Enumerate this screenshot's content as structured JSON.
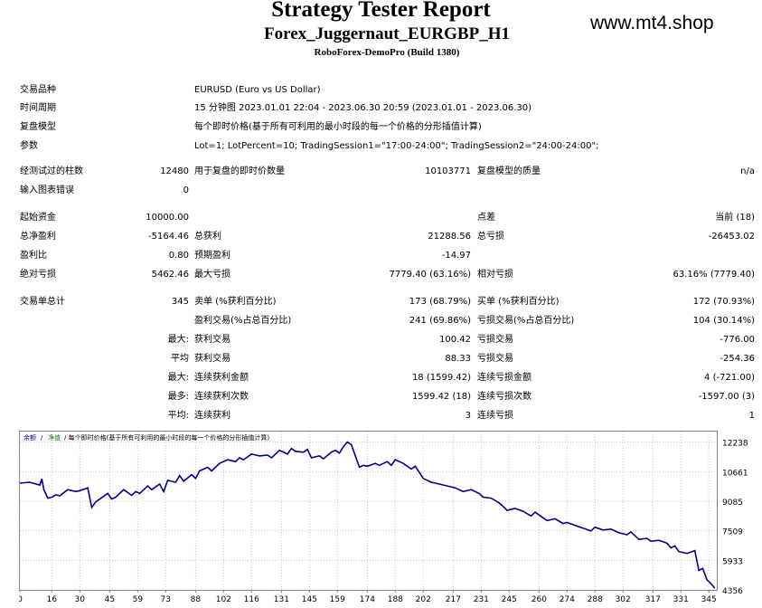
{
  "header": {
    "title": "Strategy Tester Report",
    "subtitle": "Forex_Juggernaut_EURGBP_H1",
    "build": "RoboForex-DemoPro (Build 1380)",
    "watermark": "www.mt4.shop"
  },
  "info": {
    "symbol_label": "交易品种",
    "symbol_value": "EURUSD (Euro vs US Dollar)",
    "period_label": "时间周期",
    "period_value": "15 分钟图 2023.01.01 22:04 - 2023.06.30 20:59 (2023.01.01 - 2023.06.30)",
    "model_label": "复盘模型",
    "model_value": "每个即时价格(基于所有可利用的最小时段的每一个价格的分形插值计算)",
    "params_label": "参数",
    "params_value": "Lot=1; LotPercent=10; TradingSession1=\"17:00-24:00\"; TradingSession2=\"24:00-24:00\";"
  },
  "bars": {
    "bars_label": "经测试过的柱数",
    "bars_value": "12480",
    "ticks_label": "用于复盘的即时价数量",
    "ticks_value": "10103771",
    "quality_label": "复盘模型的质量",
    "quality_value": "n/a",
    "errors_label": "输入图表错误",
    "errors_value": "0"
  },
  "stats": {
    "deposit_label": "起始资金",
    "deposit_value": "10000.00",
    "spread_label": "点差",
    "spread_value": "当前 (18)",
    "net_label": "总净盈利",
    "net_value": "-5164.46",
    "gross_profit_label": "总获利",
    "gross_profit_value": "21288.56",
    "gross_loss_label": "总亏损",
    "gross_loss_value": "-26453.02",
    "pf_label": "盈利比",
    "pf_value": "0.80",
    "payoff_label": "预期盈利",
    "payoff_value": "-14.97",
    "abs_dd_label": "绝对亏损",
    "abs_dd_value": "5462.46",
    "max_dd_label": "最大亏损",
    "max_dd_value": "7779.40 (63.16%)",
    "rel_dd_label": "相对亏损",
    "rel_dd_value": "63.16% (7779.40)"
  },
  "trades": {
    "total_label": "交易单总计",
    "total_value": "345",
    "short_label": "卖单 (%获利百分比)",
    "short_value": "173 (68.79%)",
    "long_label": "买单 (%获利百分比)",
    "long_value": "172 (70.93%)",
    "profit_trades_label": "盈利交易(%占总百分比)",
    "profit_trades_value": "241 (69.86%)",
    "loss_trades_label": "亏损交易(%占总百分比)",
    "loss_trades_value": "104 (30.14%)",
    "largest_prefix": "最大:",
    "largest_profit_label": "获利交易",
    "largest_profit_value": "100.42",
    "largest_loss_label": "亏损交易",
    "largest_loss_value": "-776.00",
    "average_prefix": "平均",
    "average_profit_label": "获利交易",
    "average_profit_value": "88.33",
    "average_loss_label": "亏损交易",
    "average_loss_value": "-254.36",
    "max_consec_prefix": "最大:",
    "max_consec_wins_label": "连续获利金额",
    "max_consec_wins_value": "18 (1599.42)",
    "max_consec_losses_label": "连续亏损金额",
    "max_consec_losses_value": "4 (-721.00)",
    "maximal_prefix": "最多:",
    "maximal_wins_label": "连续获利次数",
    "maximal_wins_value": "1599.42 (18)",
    "maximal_losses_label": "连续亏损次数",
    "maximal_losses_value": "-1597.00 (3)",
    "avg_consec_prefix": "平均:",
    "avg_consec_wins_label": "连续获利",
    "avg_consec_wins_value": "3",
    "avg_consec_losses_label": "连续亏损",
    "avg_consec_losses_value": "1"
  },
  "chart_data": {
    "type": "line",
    "legend_text": "余额 / 净值 / 每个即时价格(基于所有可利用的最小时段的每一个价格的分形插值计算)",
    "legend_balance": "余额",
    "legend_equity": "净值",
    "legend_rest": "/ 每个即时价格(基于所有可利用的最小时段的每一个价格的分形插值计算)",
    "line_color": "#00008b",
    "y_ticks": [
      12238,
      10661,
      9085,
      7509,
      5933,
      4356
    ],
    "x_ticks": [
      0,
      16,
      30,
      45,
      59,
      73,
      88,
      102,
      116,
      131,
      145,
      159,
      174,
      188,
      202,
      217,
      231,
      245,
      260,
      274,
      288,
      302,
      317,
      331,
      345
    ],
    "xlim": [
      0,
      349
    ],
    "ylim": [
      4356,
      12800
    ],
    "series": [
      {
        "x": [
          0,
          5,
          10,
          11,
          12,
          14,
          16,
          18,
          20,
          24,
          28,
          30,
          34,
          36,
          38,
          42,
          44,
          46,
          48,
          52,
          56,
          58,
          60,
          64,
          66,
          70,
          72,
          74,
          78,
          80,
          82,
          86,
          88,
          90,
          94,
          96,
          100,
          104,
          108,
          110,
          112,
          116,
          120,
          124,
          126,
          130,
          134,
          136,
          138,
          142,
          144,
          146,
          150,
          152,
          156,
          158,
          160,
          162,
          164,
          166,
          170,
          172,
          174,
          178,
          180,
          184,
          186,
          188,
          192,
          196,
          198,
          202,
          206,
          210,
          214,
          218,
          222,
          226,
          230,
          232,
          236,
          240,
          244,
          248,
          252,
          256,
          258,
          262,
          264,
          268,
          272,
          274,
          278,
          282,
          286,
          288,
          292,
          296,
          300,
          304,
          306,
          310,
          314,
          316,
          320,
          324,
          326,
          328,
          330,
          334,
          338,
          340,
          342,
          344,
          346,
          348
        ],
        "y": [
          10050,
          10100,
          9950,
          10280,
          9700,
          9250,
          9300,
          9420,
          9380,
          9700,
          9600,
          9650,
          9800,
          8750,
          9050,
          9350,
          9500,
          9200,
          9300,
          9700,
          9400,
          9600,
          9500,
          9900,
          9700,
          10000,
          9600,
          10200,
          10100,
          10450,
          10150,
          10500,
          10300,
          10700,
          10900,
          10700,
          11100,
          11300,
          11200,
          11400,
          11300,
          11600,
          11500,
          11550,
          11400,
          11800,
          11600,
          11900,
          11750,
          11700,
          11850,
          11400,
          11500,
          11350,
          11700,
          11800,
          11650,
          12000,
          12238,
          12100,
          10900,
          11000,
          10950,
          11100,
          11000,
          11200,
          11000,
          11300,
          11100,
          10800,
          10950,
          10300,
          10100,
          10000,
          9900,
          9800,
          9600,
          9700,
          9500,
          9300,
          9250,
          9000,
          8600,
          8700,
          8550,
          8300,
          8500,
          8200,
          8050,
          8150,
          7900,
          7950,
          7800,
          7650,
          7500,
          7700,
          7550,
          7600,
          7400,
          7300,
          7450,
          7050,
          7100,
          6950,
          7000,
          6850,
          6600,
          6700,
          6400,
          6300,
          6450,
          5400,
          5500,
          4900,
          4700,
          4450
        ]
      }
    ]
  }
}
